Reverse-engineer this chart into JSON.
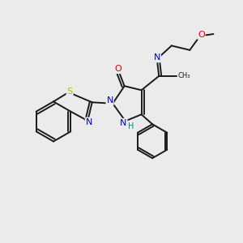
{
  "background_color": "#ebebeb",
  "bond_color": "#1a1a1a",
  "atoms": {
    "S": {
      "color": "#b8b800"
    },
    "N": {
      "color": "#0000dd"
    },
    "O": {
      "color": "#dd0000"
    },
    "H": {
      "color": "#008888"
    }
  },
  "figsize": [
    3.0,
    3.0
  ],
  "dpi": 100
}
